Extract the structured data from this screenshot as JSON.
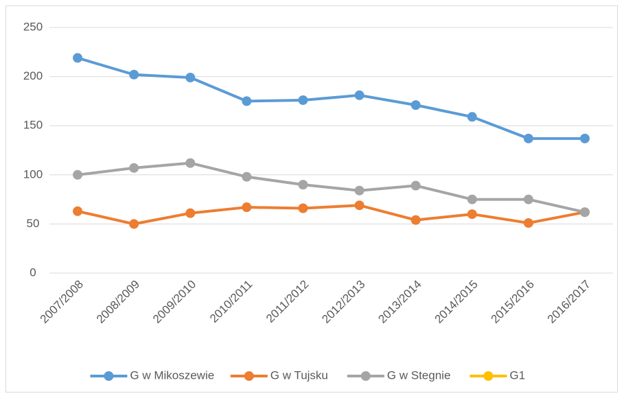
{
  "chart_data": {
    "type": "line",
    "categories": [
      "2007/2008",
      "2008/2009",
      "2009/2010",
      "2010/2011",
      "2011/2012",
      "2012/2013",
      "2013/2014",
      "2014/2015",
      "2015/2016",
      "2016/2017"
    ],
    "series": [
      {
        "name": "G w Mikoszewie",
        "color": "#5b9bd5",
        "values": [
          219,
          202,
          199,
          175,
          176,
          181,
          171,
          159,
          137,
          137
        ]
      },
      {
        "name": "G w Tujsku",
        "color": "#ed7d31",
        "values": [
          63,
          50,
          61,
          67,
          66,
          69,
          54,
          60,
          51,
          62
        ]
      },
      {
        "name": "G w Stegnie",
        "color": "#a5a5a5",
        "values": [
          100,
          107,
          112,
          98,
          90,
          84,
          89,
          75,
          75,
          62
        ]
      },
      {
        "name": "G1",
        "color": "#ffc000",
        "values": [
          null,
          null,
          null,
          null,
          null,
          null,
          null,
          null,
          null,
          null
        ]
      }
    ],
    "ylim": [
      0,
      250
    ],
    "yticks": [
      0,
      50,
      100,
      150,
      200,
      250
    ],
    "grid": true,
    "legend": "bottom"
  }
}
